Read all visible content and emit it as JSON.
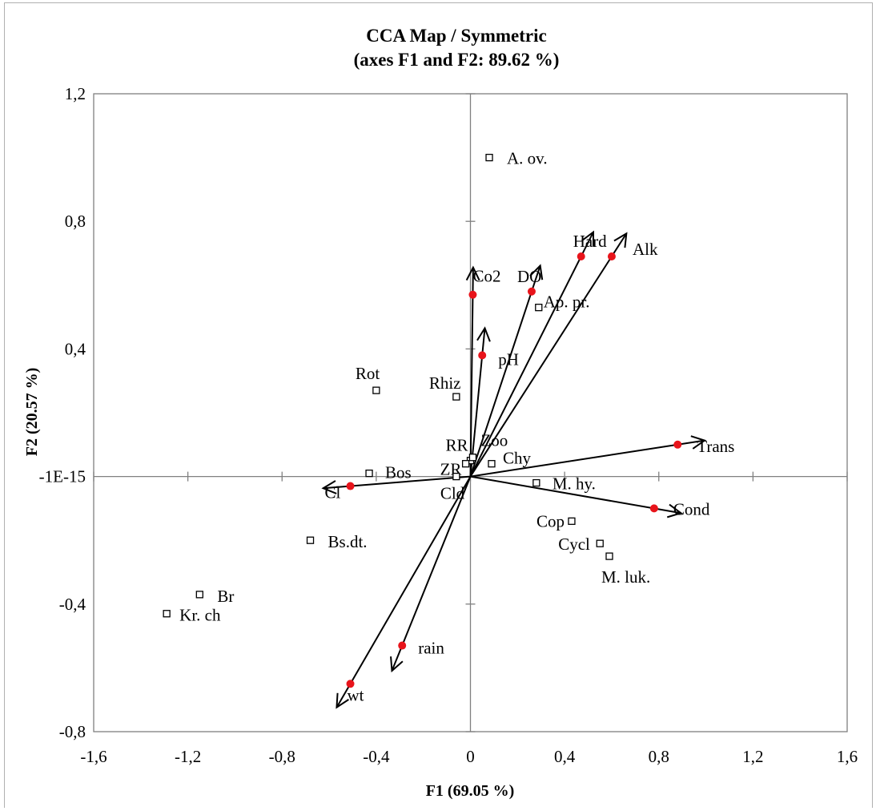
{
  "chart_data": {
    "type": "scatter",
    "title": "CCA Map / Symmetric",
    "subtitle": "(axes F1 and F2: 89.62 %)",
    "xlabel": "F1 (69.05 %)",
    "ylabel": "F2 (20.57 %)",
    "xlim": [
      -1.6,
      1.6
    ],
    "ylim": [
      -0.8,
      1.2
    ],
    "x_ticks": [
      "-1,6",
      "-1,2",
      "-0,8",
      "-0,4",
      "0",
      "0,4",
      "0,8",
      "1,2",
      "1,6"
    ],
    "y_ticks": [
      "-0,8",
      "-0,4",
      "-1E-15",
      "0,4",
      "0,8",
      "1,2"
    ],
    "grid": false,
    "colors": {
      "variable": "#e8141b",
      "object": "#000000",
      "axis": "#808080",
      "arrow": "#000000"
    },
    "variables": [
      {
        "label": "Co2",
        "x": 0.01,
        "y": 0.57
      },
      {
        "label": "DO",
        "x": 0.26,
        "y": 0.58
      },
      {
        "label": "Hard",
        "x": 0.47,
        "y": 0.69
      },
      {
        "label": "Alk",
        "x": 0.6,
        "y": 0.69
      },
      {
        "label": "pH",
        "x": 0.05,
        "y": 0.38
      },
      {
        "label": "Trans",
        "x": 0.88,
        "y": 0.1
      },
      {
        "label": "Cond",
        "x": 0.78,
        "y": -0.1
      },
      {
        "label": "Cl",
        "x": -0.51,
        "y": -0.03
      },
      {
        "label": "rain",
        "x": -0.29,
        "y": -0.53
      },
      {
        "label": "wt",
        "x": -0.51,
        "y": -0.65
      }
    ],
    "objects": [
      {
        "label": "A. ov.",
        "x": 0.08,
        "y": 1.0
      },
      {
        "label": "Ap. pr.",
        "x": 0.29,
        "y": 0.53
      },
      {
        "label": "Rot",
        "x": -0.4,
        "y": 0.27
      },
      {
        "label": "Rhiz",
        "x": -0.06,
        "y": 0.25
      },
      {
        "label": "RR",
        "x": 0.0,
        "y": 0.05
      },
      {
        "label": "Zoo",
        "x": 0.01,
        "y": 0.06
      },
      {
        "label": "ZR",
        "x": -0.02,
        "y": 0.04
      },
      {
        "label": "Chy",
        "x": 0.09,
        "y": 0.04
      },
      {
        "label": "Bos",
        "x": -0.43,
        "y": 0.01
      },
      {
        "label": "Cld",
        "x": -0.06,
        "y": 0.0
      },
      {
        "label": "M. hy.",
        "x": 0.28,
        "y": -0.02
      },
      {
        "label": "Cop",
        "x": 0.43,
        "y": -0.14
      },
      {
        "label": "Cycl",
        "x": 0.55,
        "y": -0.21
      },
      {
        "label": "M. luk.",
        "x": 0.59,
        "y": -0.25
      },
      {
        "label": "Bs.dt.",
        "x": -0.68,
        "y": -0.2
      },
      {
        "label": "Br",
        "x": -1.15,
        "y": -0.37
      },
      {
        "label": "Kr. ch",
        "x": -1.29,
        "y": -0.43
      }
    ]
  }
}
